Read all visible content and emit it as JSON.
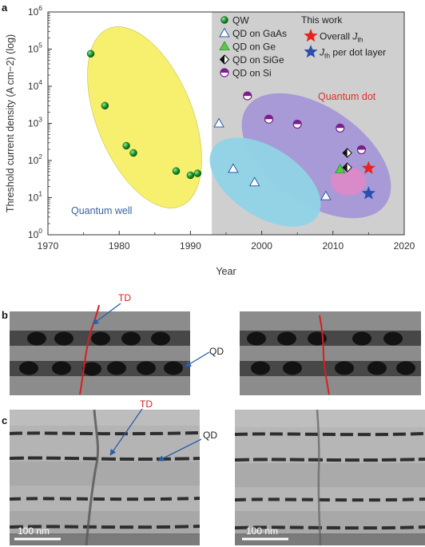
{
  "panels": {
    "a": "a",
    "b": "b",
    "c": "c"
  },
  "chart_data": {
    "type": "scatter",
    "title": "",
    "xlabel": "Year",
    "ylabel": "Threshold current density (A cm−2) (log)",
    "xlim": [
      1970,
      2020
    ],
    "ylim": [
      1,
      1000000
    ],
    "y_scale": "log",
    "x_ticks": [
      1970,
      1980,
      1990,
      2000,
      2010,
      2020
    ],
    "y_tick_exponents": [
      0,
      1,
      2,
      3,
      4,
      5,
      6
    ],
    "this_work_boundary_year": 1993,
    "series": [
      {
        "name": "QW",
        "marker": "circle",
        "color": "#1e9a2e",
        "x": [
          1976,
          1978,
          1981,
          1982,
          1988,
          1990,
          1991
        ],
        "y": [
          75000,
          3000,
          250,
          160,
          52,
          40,
          45
        ]
      },
      {
        "name": "QD on GaAs",
        "marker": "triangle",
        "color": "#ffffff",
        "x": [
          1994,
          1996,
          1999,
          2009
        ],
        "y": [
          1000,
          60,
          26,
          11
        ]
      },
      {
        "name": "QD on Ge",
        "marker": "triangle-filled",
        "color": "#59c94c",
        "x": [
          2011
        ],
        "y": [
          58
        ]
      },
      {
        "name": "QD on SiGe",
        "marker": "diamond-half",
        "color": "#111111",
        "x": [
          2012,
          2012
        ],
        "y": [
          160,
          65
        ]
      },
      {
        "name": "QD on Si",
        "marker": "circle-half",
        "color": "#7a1f8c",
        "x": [
          1998,
          2001,
          2005,
          2011,
          2014
        ],
        "y": [
          5500,
          1300,
          950,
          750,
          195
        ]
      },
      {
        "name": "Overall J_th",
        "marker": "star",
        "color": "#e8231d",
        "x": [
          2015
        ],
        "y": [
          62
        ]
      },
      {
        "name": "J_th per dot layer",
        "marker": "star",
        "color": "#2a4fb0",
        "x": [
          2015
        ],
        "y": [
          13
        ]
      }
    ],
    "legend": {
      "placement": "top-right",
      "this_work_heading": "This work",
      "entries": [
        {
          "label": "QW"
        },
        {
          "label": "QD on GaAs"
        },
        {
          "label": "QD on Ge"
        },
        {
          "label": "QD on SiGe"
        },
        {
          "label": "QD on Si"
        }
      ],
      "this_work_entries": [
        {
          "prefix": "Overall ",
          "main": "J",
          "sub": "th",
          "suffix": ""
        },
        {
          "prefix": "",
          "main": "J",
          "sub": "th",
          "suffix": " per dot layer"
        }
      ]
    },
    "annotations": [
      {
        "text": "Quantum well",
        "color": "#3a62a8"
      },
      {
        "text": "Quantum dot",
        "color": "#e0302a"
      }
    ]
  },
  "schematic": {
    "td_label": "TD",
    "qd_label": "QD",
    "colors": {
      "td": "#d42020",
      "arrow": "#2a5ea8",
      "background": "#8a8a8a",
      "layer": "#4a4a4a",
      "dot": "#111111"
    }
  },
  "micrographs": {
    "left": {
      "td_label": "TD",
      "qd_label": "QD",
      "scale_bar": "100 nm"
    },
    "right": {
      "scale_bar": "100 nm"
    }
  },
  "colors": {
    "qw_ellipse": "#f6f06e",
    "qd_gaas_ellipse": "#8fd3e6",
    "qd_si_ellipse": "#a79ad6",
    "qd_sige_ellipse": "#d98ac8",
    "this_work_background": "#cfcfcf"
  }
}
